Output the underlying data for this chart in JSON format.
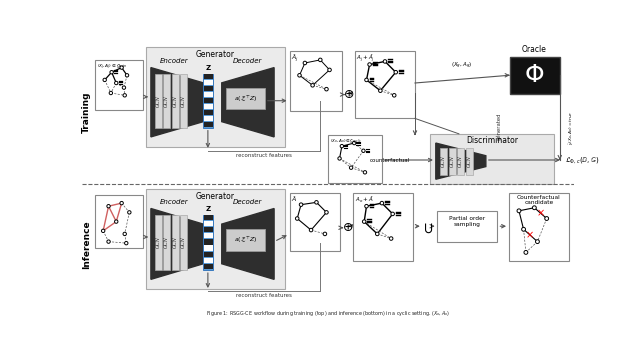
{
  "fig_width": 6.4,
  "fig_height": 3.58,
  "dpi": 100,
  "bg_color": "#ffffff",
  "training_label": "Training",
  "inference_label": "Inference",
  "generator_label": "Generator",
  "encoder_label": "Encoder",
  "decoder_label": "Decoder",
  "oracle_label": "Oracle",
  "discriminator_label": "Discriminator",
  "counterfactual_candidate_label": "Counterfactual\ncandidate",
  "partial_order_label": "Partial order\nsampling",
  "reconstruct_features": "reconstruct features",
  "generated_label": "generated",
  "counterfactual_label": "counterfactual",
  "z_color": "#5b9bd5",
  "gen_bg": "#e8e8e8",
  "dark_shape": "#333333",
  "gcn_bg": "#d8d8d8",
  "disc_bg": "#e0e0e0",
  "oracle_bg": "#111111",
  "white": "#ffffff",
  "arrow_color": "#555555",
  "border_color": "#888888"
}
